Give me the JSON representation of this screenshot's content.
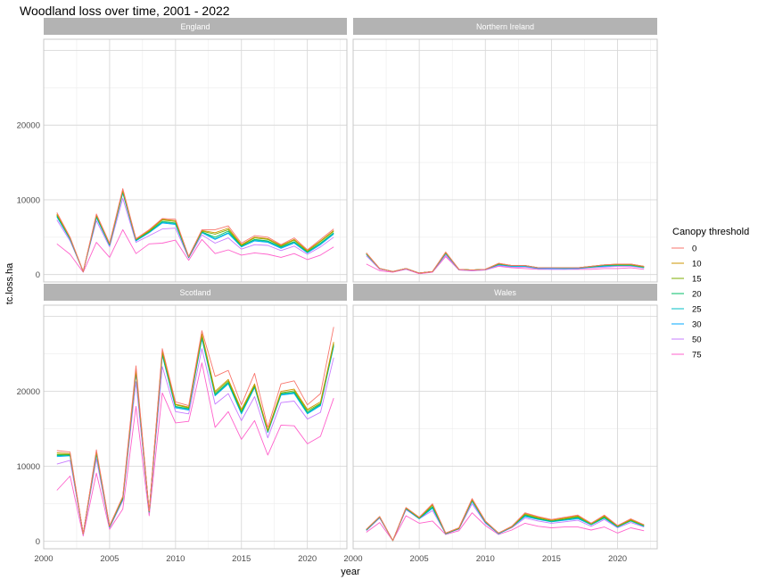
{
  "chart_data": {
    "type": "line",
    "title": "Woodland loss over time, 2001 - 2022",
    "xlabel": "year",
    "ylabel": "tc.loss.ha",
    "xlim": [
      2000,
      2023
    ],
    "ylim": [
      -1000,
      31500
    ],
    "x_ticks": [
      2000,
      2005,
      2010,
      2015,
      2020
    ],
    "y_ticks": [
      0,
      10000,
      20000
    ],
    "grid": true,
    "legend": {
      "title": "Canopy threshold",
      "position": "right",
      "entries": [
        "0",
        "10",
        "15",
        "20",
        "25",
        "30",
        "50",
        "75"
      ],
      "colors": [
        "#F8766D",
        "#CD9600",
        "#7CAE00",
        "#00BE67",
        "#00BFC4",
        "#00A9FF",
        "#C77CFF",
        "#FF61CC"
      ]
    },
    "x": [
      2001,
      2002,
      2003,
      2004,
      2005,
      2006,
      2007,
      2008,
      2009,
      2010,
      2011,
      2012,
      2013,
      2014,
      2015,
      2016,
      2017,
      2018,
      2019,
      2020,
      2021,
      2022
    ],
    "panels": [
      {
        "label": "England",
        "series": [
          {
            "name": "0",
            "values": [
              8300,
              5000,
              400,
              8100,
              4200,
              11500,
              4800,
              6000,
              7500,
              7400,
              2400,
              6000,
              6000,
              6500,
              4200,
              5200,
              5000,
              4000,
              4900,
              3300,
              4700,
              6100
            ]
          },
          {
            "name": "10",
            "values": [
              8100,
              4900,
              400,
              8000,
              4100,
              11300,
              4700,
              5900,
              7400,
              7200,
              2400,
              5900,
              5600,
              6200,
              4000,
              5000,
              4800,
              3900,
              4700,
              3200,
              4500,
              5900
            ]
          },
          {
            "name": "15",
            "values": [
              8000,
              4900,
              400,
              7900,
              4100,
              11200,
              4700,
              5800,
              7300,
              7100,
              2400,
              5800,
              5400,
              6000,
              3900,
              4900,
              4700,
              3800,
              4600,
              3100,
              4400,
              5800
            ]
          },
          {
            "name": "20",
            "values": [
              7900,
              4800,
              400,
              7800,
              4000,
              11100,
              4600,
              5700,
              7100,
              6900,
              2300,
              5700,
              5000,
              5800,
              3800,
              4700,
              4500,
              3700,
              4400,
              3000,
              4200,
              5600
            ]
          },
          {
            "name": "25",
            "values": [
              7800,
              4800,
              400,
              7700,
              4000,
              11000,
              4600,
              5700,
              7000,
              6800,
              2300,
              5700,
              4800,
              5600,
              3800,
              4600,
              4400,
              3600,
              4300,
              3000,
              4100,
              5500
            ]
          },
          {
            "name": "30",
            "values": [
              7700,
              4700,
              400,
              7600,
              3900,
              10900,
              4500,
              5600,
              6900,
              6700,
              2300,
              5600,
              4700,
              5500,
              3700,
              4500,
              4300,
              3500,
              4200,
              2900,
              4000,
              5400
            ]
          },
          {
            "name": "50",
            "values": [
              7300,
              4500,
              400,
              7200,
              3700,
              10200,
              4300,
              5200,
              6100,
              6200,
              2200,
              5300,
              4200,
              4900,
              3400,
              4000,
              3900,
              3200,
              3800,
              2700,
              3700,
              5000
            ]
          },
          {
            "name": "75",
            "values": [
              4100,
              2700,
              300,
              4300,
              2300,
              6000,
              2800,
              4100,
              4200,
              4600,
              1900,
              4700,
              2800,
              3300,
              2600,
              2900,
              2700,
              2300,
              2800,
              2000,
              2600,
              3700
            ]
          }
        ]
      },
      {
        "label": "Northern Ireland",
        "series": [
          {
            "name": "0",
            "values": [
              2900,
              800,
              400,
              800,
              200,
              400,
              3000,
              700,
              600,
              700,
              1500,
              1200,
              1200,
              900,
              900,
              900,
              900,
              1100,
              1300,
              1400,
              1400,
              1100
            ]
          },
          {
            "name": "10",
            "values": [
              2900,
              800,
              400,
              800,
              200,
              400,
              3000,
              700,
              600,
              700,
              1500,
              1200,
              1200,
              900,
              900,
              900,
              900,
              1100,
              1300,
              1400,
              1400,
              1100
            ]
          },
          {
            "name": "15",
            "values": [
              2800,
              800,
              400,
              800,
              200,
              400,
              2900,
              700,
              600,
              700,
              1400,
              1200,
              1200,
              900,
              900,
              900,
              900,
              1100,
              1300,
              1300,
              1300,
              1000
            ]
          },
          {
            "name": "20",
            "values": [
              2800,
              800,
              400,
              800,
              200,
              400,
              2900,
              700,
              600,
              700,
              1400,
              1200,
              1200,
              900,
              900,
              900,
              900,
              1000,
              1200,
              1300,
              1300,
              1000
            ]
          },
          {
            "name": "25",
            "values": [
              2700,
              800,
              400,
              800,
              200,
              400,
              2800,
              700,
              600,
              700,
              1400,
              1100,
              1100,
              900,
              900,
              800,
              900,
              1000,
              1200,
              1200,
              1200,
              1000
            ]
          },
          {
            "name": "30",
            "values": [
              2700,
              800,
              400,
              800,
              200,
              400,
              2800,
              700,
              600,
              700,
              1300,
              1100,
              1100,
              800,
              800,
              800,
              800,
              1000,
              1100,
              1200,
              1200,
              900
            ]
          },
          {
            "name": "50",
            "values": [
              2500,
              700,
              400,
              700,
              200,
              400,
              2600,
              600,
              500,
              600,
              1200,
              1000,
              1000,
              800,
              700,
              700,
              800,
              900,
              1000,
              1100,
              1100,
              900
            ]
          },
          {
            "name": "75",
            "values": [
              1400,
              500,
              300,
              700,
              100,
              300,
              2400,
              600,
              500,
              600,
              1100,
              900,
              800,
              700,
              700,
              700,
              700,
              700,
              800,
              800,
              900,
              700
            ]
          }
        ]
      },
      {
        "label": "Scotland",
        "series": [
          {
            "name": "0",
            "values": [
              12100,
              11900,
              1000,
              12200,
              2100,
              6000,
              23400,
              4000,
              25700,
              18600,
              18100,
              28100,
              22000,
              22800,
              18200,
              22400,
              15200,
              21000,
              21400,
              18200,
              19700,
              28600
            ]
          },
          {
            "name": "10",
            "values": [
              11800,
              11700,
              1000,
              12000,
              2000,
              5900,
              23000,
              4000,
              25400,
              18300,
              17900,
              27700,
              20000,
              21600,
              17600,
              21000,
              14800,
              20000,
              20300,
              17600,
              18600,
              26600
            ]
          },
          {
            "name": "15",
            "values": [
              11600,
              11600,
              1000,
              11900,
              2000,
              5800,
              22800,
              4000,
              25200,
              18200,
              17800,
              27500,
              19800,
              21400,
              17400,
              20800,
              14700,
              19800,
              20100,
              17400,
              18400,
              26400
            ]
          },
          {
            "name": "20",
            "values": [
              11500,
              11500,
              1000,
              11800,
              2000,
              5700,
              22700,
              3900,
              25000,
              18000,
              17700,
              27300,
              19600,
              21200,
              17200,
              20700,
              14600,
              19700,
              19900,
              17200,
              18300,
              26200
            ]
          },
          {
            "name": "25",
            "values": [
              11400,
              11500,
              1000,
              11700,
              1900,
              5700,
              22600,
              3900,
              24900,
              17900,
              17600,
              27100,
              19500,
              21100,
              17100,
              20600,
              14600,
              19600,
              19800,
              17100,
              18200,
              26100
            ]
          },
          {
            "name": "30",
            "values": [
              11300,
              11400,
              1000,
              11600,
              1900,
              5600,
              22500,
              3900,
              24800,
              17800,
              17500,
              27000,
              19400,
              21000,
              17000,
              20500,
              14500,
              19500,
              19700,
              17000,
              18100,
              26000
            ]
          },
          {
            "name": "50",
            "values": [
              10300,
              10800,
              900,
              11000,
              1800,
              5400,
              21300,
              3800,
              23300,
              17300,
              17000,
              25700,
              18300,
              19700,
              16100,
              19300,
              13800,
              18500,
              18700,
              16300,
              17200,
              24500
            ]
          },
          {
            "name": "75",
            "values": [
              6800,
              8700,
              700,
              9100,
              1600,
              4300,
              18000,
              3400,
              19800,
              15800,
              16000,
              23800,
              15200,
              17300,
              13600,
              16100,
              11500,
              15500,
              15400,
              13000,
              14000,
              19100
            ]
          }
        ]
      },
      {
        "label": "Wales",
        "series": [
          {
            "name": "0",
            "values": [
              1600,
              3300,
              100,
              4500,
              3200,
              5000,
              1100,
              1800,
              5700,
              2700,
              1100,
              2000,
              3800,
              3300,
              2900,
              3200,
              3500,
              2400,
              3500,
              2100,
              3000,
              2200
            ]
          },
          {
            "name": "10",
            "values": [
              1600,
              3300,
              100,
              4500,
              3200,
              4900,
              1100,
              1800,
              5600,
              2700,
              1100,
              2000,
              3700,
              3200,
              2800,
              3100,
              3400,
              2400,
              3400,
              2100,
              2900,
              2200
            ]
          },
          {
            "name": "15",
            "values": [
              1600,
              3300,
              100,
              4400,
              3100,
              4800,
              1100,
              1700,
              5500,
              2600,
              1100,
              1900,
              3600,
              3100,
              2800,
              3000,
              3300,
              2300,
              3300,
              2000,
              2800,
              2100
            ]
          },
          {
            "name": "20",
            "values": [
              1500,
              3200,
              100,
              4400,
              3100,
              4600,
              1000,
              1700,
              5500,
              2600,
              1100,
              1900,
              3500,
              3000,
              2700,
              2900,
              3200,
              2300,
              3200,
              2000,
              2800,
              2100
            ]
          },
          {
            "name": "25",
            "values": [
              1500,
              3200,
              100,
              4400,
              3100,
              4500,
              1000,
              1700,
              5400,
              2600,
              1000,
              1900,
              3400,
              3000,
              2600,
              2900,
              3100,
              2200,
              3100,
              1900,
              2700,
              2000
            ]
          },
          {
            "name": "30",
            "values": [
              1500,
              3200,
              100,
              4300,
              3000,
              4400,
              1000,
              1700,
              5300,
              2500,
              1000,
              1900,
              3300,
              2900,
              2600,
              2800,
              3000,
              2200,
              3100,
              1900,
              2700,
              2000
            ]
          },
          {
            "name": "50",
            "values": [
              1400,
              3100,
              100,
              4200,
              3000,
              4100,
              1000,
              1600,
              5000,
              2400,
              1000,
              1800,
              3100,
              2700,
              2400,
              2600,
              2800,
              2000,
              2900,
              1800,
              2500,
              1900
            ]
          },
          {
            "name": "75",
            "values": [
              1200,
              2500,
              100,
              3400,
              2400,
              2700,
              900,
              1400,
              3800,
              2100,
              900,
              1500,
              2400,
              2000,
              1800,
              1900,
              1900,
              1500,
              1900,
              1100,
              1800,
              1400
            ]
          }
        ]
      }
    ]
  }
}
